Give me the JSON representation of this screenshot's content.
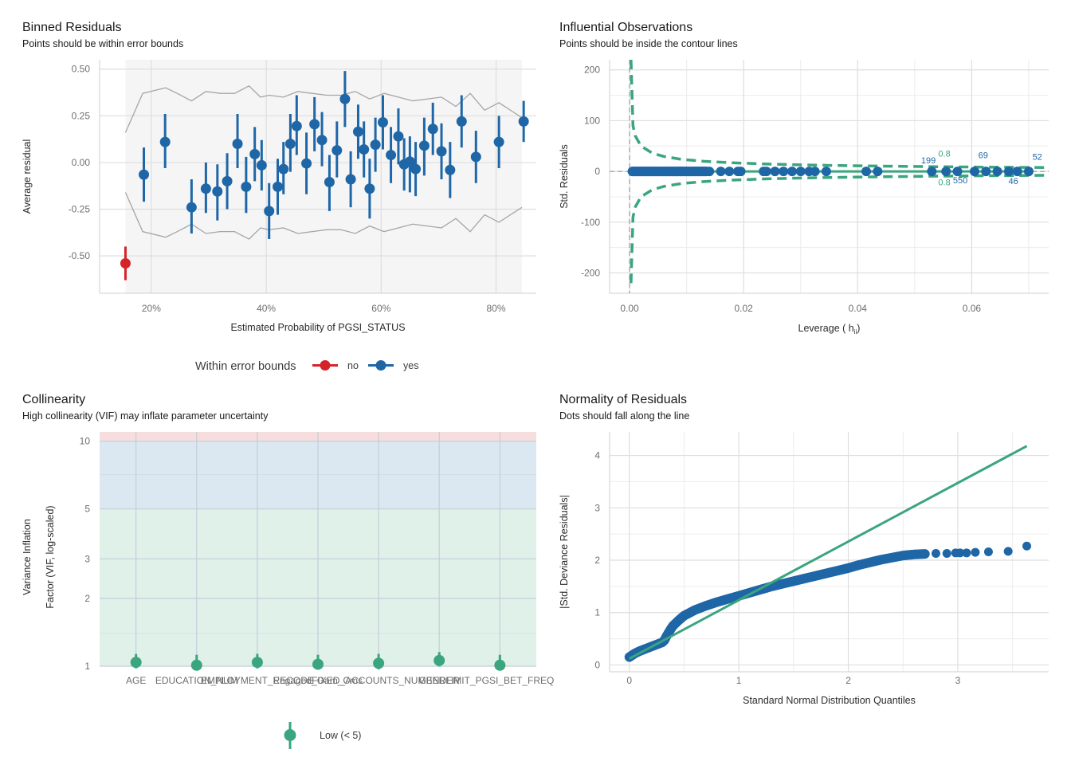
{
  "colors": {
    "blue": "#1f66a7",
    "red": "#d5232a",
    "green": "#3aa57f",
    "bound_line": "#a6a6a6",
    "panel_bg": "#f5f5f5",
    "grid": "#dedede",
    "zone_high": "#f7dede",
    "zone_moderate": "#dbe7f1",
    "zone_low": "#e0f1ea"
  },
  "chart_data": [
    {
      "id": "binned",
      "type": "scatter",
      "title": "Binned Residuals",
      "subtitle": "Points should be within error bounds",
      "xlabel": "Estimated Probability of PGSI_STATUS",
      "ylabel": "Average residual",
      "xlim": [
        0.11,
        0.87
      ],
      "ylim": [
        -0.7,
        0.55
      ],
      "xticks": [
        0.2,
        0.4,
        0.6,
        0.8
      ],
      "xtick_labels": [
        "20%",
        "40%",
        "60%",
        "80%"
      ],
      "yticks": [
        0.5,
        0.25,
        0.0,
        -0.25,
        -0.5
      ],
      "ytick_labels": [
        "0.50",
        "0.25",
        "0.00",
        "-0.25",
        "-0.50"
      ],
      "legend": {
        "title": "Within error bounds",
        "position": "bottom",
        "entries": [
          {
            "label": "no",
            "color": "red"
          },
          {
            "label": "yes",
            "color": "blue"
          }
        ]
      },
      "bounds": {
        "x": [
          0.155,
          0.185,
          0.225,
          0.245,
          0.27,
          0.295,
          0.32,
          0.345,
          0.37,
          0.39,
          0.405,
          0.43,
          0.455,
          0.48,
          0.505,
          0.53,
          0.555,
          0.58,
          0.605,
          0.63,
          0.655,
          0.68,
          0.705,
          0.73,
          0.755,
          0.78,
          0.805,
          0.83,
          0.845
        ],
        "upper": [
          0.16,
          0.37,
          0.4,
          0.37,
          0.33,
          0.38,
          0.37,
          0.37,
          0.41,
          0.35,
          0.36,
          0.35,
          0.38,
          0.37,
          0.36,
          0.36,
          0.38,
          0.34,
          0.37,
          0.35,
          0.33,
          0.34,
          0.35,
          0.3,
          0.37,
          0.28,
          0.32,
          0.27,
          0.24
        ],
        "lower": [
          -0.16,
          -0.37,
          -0.4,
          -0.37,
          -0.33,
          -0.38,
          -0.37,
          -0.37,
          -0.41,
          -0.35,
          -0.36,
          -0.35,
          -0.38,
          -0.37,
          -0.36,
          -0.36,
          -0.38,
          -0.34,
          -0.37,
          -0.35,
          -0.33,
          -0.34,
          -0.35,
          -0.3,
          -0.37,
          -0.28,
          -0.32,
          -0.27,
          -0.24
        ]
      },
      "points": [
        {
          "x": 0.155,
          "y": -0.54,
          "lo": -0.63,
          "hi": -0.45,
          "in": "no"
        },
        {
          "x": 0.187,
          "y": -0.065,
          "lo": -0.21,
          "hi": 0.08,
          "in": "yes"
        },
        {
          "x": 0.224,
          "y": 0.11,
          "lo": -0.03,
          "hi": 0.26,
          "in": "yes"
        },
        {
          "x": 0.27,
          "y": -0.24,
          "lo": -0.38,
          "hi": -0.09,
          "in": "yes"
        },
        {
          "x": 0.295,
          "y": -0.14,
          "lo": -0.27,
          "hi": 0.0,
          "in": "yes"
        },
        {
          "x": 0.315,
          "y": -0.155,
          "lo": -0.31,
          "hi": -0.01,
          "in": "yes"
        },
        {
          "x": 0.332,
          "y": -0.1,
          "lo": -0.25,
          "hi": 0.05,
          "in": "yes"
        },
        {
          "x": 0.35,
          "y": 0.1,
          "lo": -0.03,
          "hi": 0.26,
          "in": "yes"
        },
        {
          "x": 0.365,
          "y": -0.13,
          "lo": -0.27,
          "hi": 0.03,
          "in": "yes"
        },
        {
          "x": 0.38,
          "y": 0.045,
          "lo": -0.1,
          "hi": 0.19,
          "in": "yes"
        },
        {
          "x": 0.392,
          "y": -0.015,
          "lo": -0.15,
          "hi": 0.12,
          "in": "yes"
        },
        {
          "x": 0.405,
          "y": -0.26,
          "lo": -0.41,
          "hi": -0.11,
          "in": "yes"
        },
        {
          "x": 0.42,
          "y": -0.13,
          "lo": -0.28,
          "hi": 0.02,
          "in": "yes"
        },
        {
          "x": 0.43,
          "y": -0.035,
          "lo": -0.17,
          "hi": 0.11,
          "in": "yes"
        },
        {
          "x": 0.442,
          "y": 0.1,
          "lo": -0.05,
          "hi": 0.26,
          "in": "yes"
        },
        {
          "x": 0.453,
          "y": 0.195,
          "lo": 0.04,
          "hi": 0.36,
          "in": "yes"
        },
        {
          "x": 0.47,
          "y": -0.005,
          "lo": -0.17,
          "hi": 0.16,
          "in": "yes"
        },
        {
          "x": 0.484,
          "y": 0.205,
          "lo": 0.06,
          "hi": 0.35,
          "in": "yes"
        },
        {
          "x": 0.497,
          "y": 0.12,
          "lo": -0.02,
          "hi": 0.27,
          "in": "yes"
        },
        {
          "x": 0.51,
          "y": -0.105,
          "lo": -0.26,
          "hi": 0.04,
          "in": "yes"
        },
        {
          "x": 0.523,
          "y": 0.065,
          "lo": -0.08,
          "hi": 0.22,
          "in": "yes"
        },
        {
          "x": 0.537,
          "y": 0.34,
          "lo": 0.19,
          "hi": 0.49,
          "in": "yes"
        },
        {
          "x": 0.547,
          "y": -0.09,
          "lo": -0.24,
          "hi": 0.06,
          "in": "yes"
        },
        {
          "x": 0.56,
          "y": 0.165,
          "lo": 0.02,
          "hi": 0.31,
          "in": "yes"
        },
        {
          "x": 0.57,
          "y": 0.07,
          "lo": -0.08,
          "hi": 0.22,
          "in": "yes"
        },
        {
          "x": 0.58,
          "y": -0.14,
          "lo": -0.3,
          "hi": 0.02,
          "in": "yes"
        },
        {
          "x": 0.59,
          "y": 0.095,
          "lo": -0.05,
          "hi": 0.24,
          "in": "yes"
        },
        {
          "x": 0.603,
          "y": 0.215,
          "lo": 0.07,
          "hi": 0.36,
          "in": "yes"
        },
        {
          "x": 0.617,
          "y": 0.04,
          "lo": -0.11,
          "hi": 0.19,
          "in": "yes"
        },
        {
          "x": 0.63,
          "y": 0.14,
          "lo": -0.01,
          "hi": 0.29,
          "in": "yes"
        },
        {
          "x": 0.64,
          "y": -0.01,
          "lo": -0.15,
          "hi": 0.13,
          "in": "yes"
        },
        {
          "x": 0.65,
          "y": 0.005,
          "lo": -0.16,
          "hi": 0.14,
          "in": "yes"
        },
        {
          "x": 0.66,
          "y": -0.035,
          "lo": -0.18,
          "hi": 0.11,
          "in": "yes"
        },
        {
          "x": 0.675,
          "y": 0.09,
          "lo": -0.07,
          "hi": 0.24,
          "in": "yes"
        },
        {
          "x": 0.69,
          "y": 0.18,
          "lo": 0.04,
          "hi": 0.32,
          "in": "yes"
        },
        {
          "x": 0.705,
          "y": 0.06,
          "lo": -0.09,
          "hi": 0.21,
          "in": "yes"
        },
        {
          "x": 0.72,
          "y": -0.04,
          "lo": -0.19,
          "hi": 0.11,
          "in": "yes"
        },
        {
          "x": 0.74,
          "y": 0.22,
          "lo": 0.08,
          "hi": 0.36,
          "in": "yes"
        },
        {
          "x": 0.765,
          "y": 0.03,
          "lo": -0.11,
          "hi": 0.17,
          "in": "yes"
        },
        {
          "x": 0.805,
          "y": 0.11,
          "lo": -0.03,
          "hi": 0.25,
          "in": "yes"
        },
        {
          "x": 0.848,
          "y": 0.22,
          "lo": 0.11,
          "hi": 0.33,
          "in": "yes"
        }
      ]
    },
    {
      "id": "influential",
      "type": "scatter",
      "title": "Influential Observations",
      "subtitle": "Points should be inside the contour lines",
      "xlabel_main": "Leverage (",
      "xlabel_sub": "ii",
      "xlabel_end": ")",
      "xlabel_h": "h",
      "ylabel": "Std. Residuals",
      "xlim": [
        -0.0035,
        0.0735
      ],
      "ylim": [
        -240,
        220
      ],
      "xticks": [
        0.0,
        0.02,
        0.04,
        0.06
      ],
      "xtick_labels": [
        "0.00",
        "0.02",
        "0.04",
        "0.06"
      ],
      "yticks": [
        200,
        100,
        0,
        -100,
        -200
      ],
      "ytick_labels": [
        "200",
        "100",
        "0",
        "-100",
        "-200"
      ],
      "contour_level": "0.8",
      "contour_x": [
        0.00025,
        0.0006,
        0.001,
        0.002,
        0.004,
        0.006,
        0.009,
        0.013,
        0.018,
        0.025,
        0.033,
        0.042,
        0.052,
        0.062,
        0.073
      ],
      "contour_y": [
        220,
        90,
        70,
        50,
        36,
        29.5,
        24,
        20,
        17,
        14.3,
        12.3,
        10.8,
        9.5,
        8.5,
        7.7
      ],
      "points_x": [
        0.0005,
        0.001,
        0.0015,
        0.002,
        0.0025,
        0.003,
        0.0035,
        0.004,
        0.0045,
        0.005,
        0.0055,
        0.006,
        0.0065,
        0.007,
        0.0075,
        0.008,
        0.0085,
        0.009,
        0.0095,
        0.01,
        0.0105,
        0.011,
        0.0115,
        0.012,
        0.0125,
        0.013,
        0.0135,
        0.014,
        0.016,
        0.0175,
        0.019,
        0.0195,
        0.0235,
        0.024,
        0.0255,
        0.027,
        0.0285,
        0.03,
        0.0315,
        0.0325,
        0.0345,
        0.0415,
        0.0435,
        0.053,
        0.0555,
        0.0575,
        0.0605,
        0.0625,
        0.0645,
        0.0665,
        0.068,
        0.07
      ],
      "labels": [
        {
          "text": "199",
          "x": 0.0524,
          "y": 16,
          "series": "point"
        },
        {
          "text": "0.8",
          "x": 0.0552,
          "y": 29,
          "series": "contour"
        },
        {
          "text": "0.8",
          "x": 0.0552,
          "y": -27,
          "series": "contour"
        },
        {
          "text": "550",
          "x": 0.058,
          "y": -23,
          "series": "point"
        },
        {
          "text": "69",
          "x": 0.062,
          "y": 26,
          "series": "point"
        },
        {
          "text": "46",
          "x": 0.0673,
          "y": -25,
          "series": "point"
        },
        {
          "text": "52",
          "x": 0.0715,
          "y": 23,
          "series": "point"
        }
      ]
    },
    {
      "id": "collinearity",
      "type": "scatter",
      "title": "Collinearity",
      "subtitle": "High collinearity (VIF) may inflate parameter uncertainty",
      "ylabel_line1": "Variance Inflation",
      "ylabel_line2": "Factor (VIF, log-scaled)",
      "y_scale": "log",
      "ylim": [
        1,
        11
      ],
      "yticks": [
        10,
        5,
        3,
        2,
        1
      ],
      "ytick_labels": [
        "10",
        "5",
        "3",
        "2",
        "1"
      ],
      "zones": [
        {
          "name": "high",
          "from": 10,
          "to": 11
        },
        {
          "name": "moderate",
          "from": 5,
          "to": 10
        },
        {
          "name": "low",
          "from": 1,
          "to": 5
        }
      ],
      "categories": [
        "AGE",
        "EDUCATION_NUM",
        "EMPLOYMENT_RECODE",
        "Engaged_Gam_Cms",
        "FIXED_ACCOUNTS_NUMBER",
        "GENDER",
        "LIMIT_PGSI_BET_FREQ"
      ],
      "vif": [
        1.04,
        1.01,
        1.04,
        1.02,
        1.03,
        1.06,
        1.01
      ],
      "vif_lo": [
        1.01,
        1.0,
        1.01,
        1.0,
        1.0,
        1.03,
        1.0
      ],
      "vif_hi": [
        1.08,
        1.07,
        1.08,
        1.07,
        1.08,
        1.1,
        1.07
      ],
      "legend": {
        "position": "bottom",
        "entries": [
          {
            "label": "Low (< 5)",
            "color": "green"
          }
        ]
      }
    },
    {
      "id": "normality",
      "type": "scatter",
      "title": "Normality of Residuals",
      "subtitle": "Dots should fall along the line",
      "xlabel": "Standard Normal Distribution Quantiles",
      "ylabel": "|Std. Deviance Residuals|",
      "xlim": [
        -0.18,
        3.83
      ],
      "ylim": [
        -0.13,
        4.45
      ],
      "xticks": [
        0,
        1,
        2,
        3
      ],
      "xtick_labels": [
        "0",
        "1",
        "2",
        "3"
      ],
      "yticks": [
        4,
        3,
        2,
        1,
        0
      ],
      "ytick_labels": [
        "4",
        "3",
        "2",
        "1",
        "0"
      ],
      "reference_line": [
        [
          0.0,
          0.12
        ],
        [
          3.63,
          4.18
        ]
      ],
      "curve_x": [
        0.0,
        0.05,
        0.1,
        0.15,
        0.2,
        0.25,
        0.3,
        0.32,
        0.34,
        0.36,
        0.38,
        0.4,
        0.45,
        0.5,
        0.6,
        0.7,
        0.8,
        0.9,
        1.0,
        1.1,
        1.2,
        1.3,
        1.4,
        1.5,
        1.6,
        1.7,
        1.8,
        1.9,
        2.0,
        2.1,
        2.2,
        2.3,
        2.4,
        2.5,
        2.6,
        2.7
      ],
      "curve_y": [
        0.15,
        0.22,
        0.27,
        0.31,
        0.35,
        0.39,
        0.43,
        0.47,
        0.55,
        0.62,
        0.69,
        0.75,
        0.85,
        0.94,
        1.05,
        1.13,
        1.2,
        1.26,
        1.32,
        1.38,
        1.44,
        1.5,
        1.55,
        1.6,
        1.65,
        1.7,
        1.75,
        1.8,
        1.85,
        1.91,
        1.96,
        2.01,
        2.05,
        2.09,
        2.11,
        2.12
      ],
      "tail_points": [
        {
          "x": 2.8,
          "y": 2.13
        },
        {
          "x": 2.9,
          "y": 2.13
        },
        {
          "x": 2.98,
          "y": 2.14
        },
        {
          "x": 3.02,
          "y": 2.14
        },
        {
          "x": 3.08,
          "y": 2.14
        },
        {
          "x": 3.16,
          "y": 2.15
        },
        {
          "x": 3.28,
          "y": 2.16
        },
        {
          "x": 3.46,
          "y": 2.17
        },
        {
          "x": 3.63,
          "y": 2.27
        }
      ]
    }
  ]
}
